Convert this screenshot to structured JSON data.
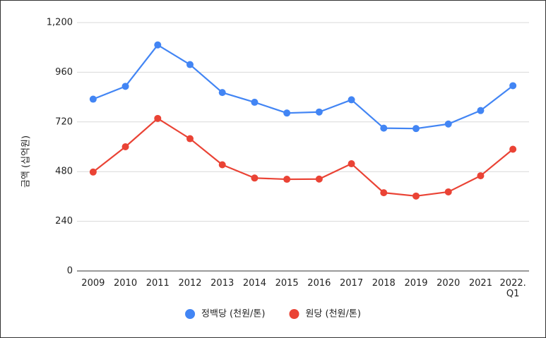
{
  "chart_data": {
    "type": "line",
    "title": "",
    "xlabel": "",
    "ylabel": "금액 (십억원)",
    "categories": [
      "2009",
      "2010",
      "2011",
      "2012",
      "2013",
      "2014",
      "2015",
      "2016",
      "2017",
      "2018",
      "2019",
      "2020",
      "2021",
      "2022.\nQ1"
    ],
    "ylim": [
      0,
      1200
    ],
    "yticks": [
      0,
      240,
      480,
      720,
      960,
      1200
    ],
    "ytick_labels": [
      "0",
      "240",
      "480",
      "720",
      "960",
      "1,200"
    ],
    "grid": true,
    "legend_position": "bottom",
    "series": [
      {
        "name": "정백당 (천원/톤)",
        "color": "#4285F4",
        "values": [
          830,
          892,
          1092,
          997,
          862,
          815,
          763,
          768,
          827,
          690,
          688,
          710,
          775,
          895
        ]
      },
      {
        "name": "원당 (천원/톤)",
        "color": "#EA4335",
        "values": [
          478,
          600,
          737,
          639,
          513,
          449,
          443,
          444,
          518,
          378,
          362,
          382,
          460,
          588
        ]
      }
    ]
  }
}
